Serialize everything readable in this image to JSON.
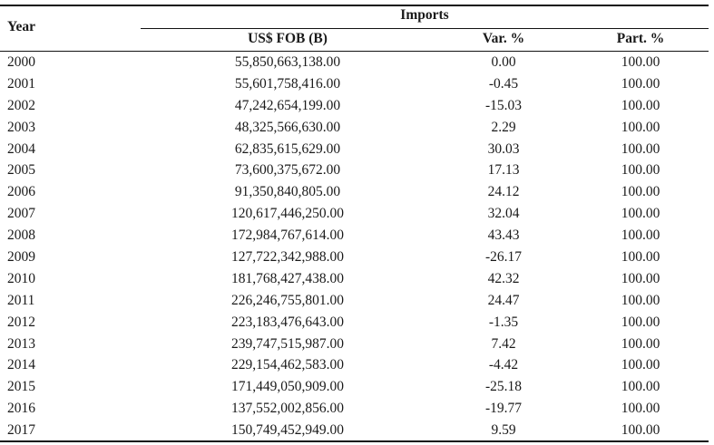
{
  "table": {
    "group_header": "Imports",
    "columns": [
      "Year",
      "US$ FOB (B)",
      "Var. %",
      "Part. %"
    ],
    "rows": [
      [
        "2000",
        "55,850,663,138.00",
        "0.00",
        "100.00"
      ],
      [
        "2001",
        "55,601,758,416.00",
        "-0.45",
        "100.00"
      ],
      [
        "2002",
        "47,242,654,199.00",
        "-15.03",
        "100.00"
      ],
      [
        "2003",
        "48,325,566,630.00",
        "2.29",
        "100.00"
      ],
      [
        "2004",
        "62,835,615,629.00",
        "30.03",
        "100.00"
      ],
      [
        "2005",
        "73,600,375,672.00",
        "17.13",
        "100.00"
      ],
      [
        "2006",
        "91,350,840,805.00",
        "24.12",
        "100.00"
      ],
      [
        "2007",
        "120,617,446,250.00",
        "32.04",
        "100.00"
      ],
      [
        "2008",
        "172,984,767,614.00",
        "43.43",
        "100.00"
      ],
      [
        "2009",
        "127,722,342,988.00",
        "-26.17",
        "100.00"
      ],
      [
        "2010",
        "181,768,427,438.00",
        "42.32",
        "100.00"
      ],
      [
        "2011",
        "226,246,755,801.00",
        "24.47",
        "100.00"
      ],
      [
        "2012",
        "223,183,476,643.00",
        "-1.35",
        "100.00"
      ],
      [
        "2013",
        "239,747,515,987.00",
        "7.42",
        "100.00"
      ],
      [
        "2014",
        "229,154,462,583.00",
        "-4.42",
        "100.00"
      ],
      [
        "2015",
        "171,449,050,909.00",
        "-25.18",
        "100.00"
      ],
      [
        "2016",
        "137,552,002,856.00",
        "-19.77",
        "100.00"
      ],
      [
        "2017",
        "150,749,452,949.00",
        "9.59",
        "100.00"
      ]
    ]
  }
}
